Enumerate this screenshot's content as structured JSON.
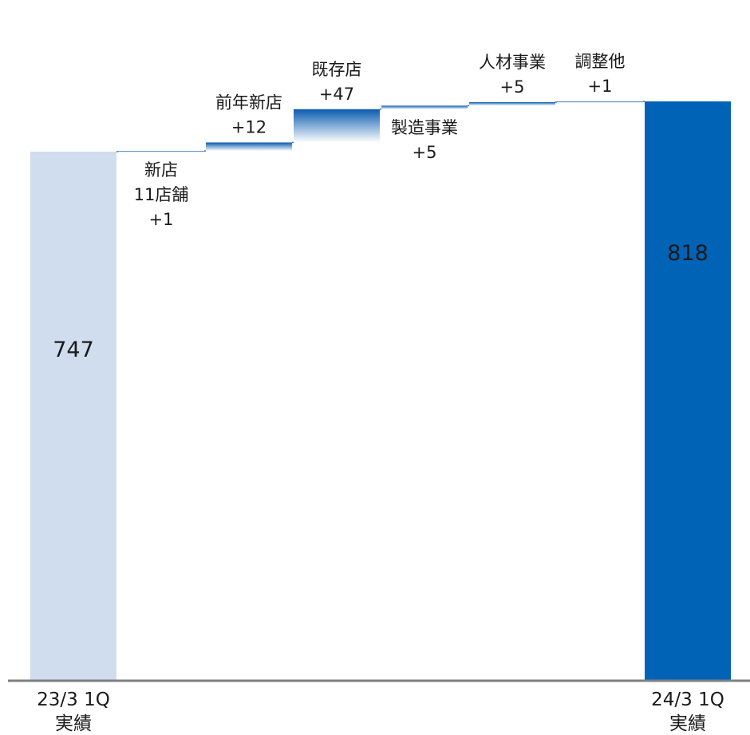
{
  "chart_data": {
    "type": "waterfall",
    "title": "",
    "xlabel": "",
    "ylabel": "",
    "ylim": [
      0,
      818
    ],
    "grid": false,
    "legend": "none",
    "bars": [
      {
        "kind": "total",
        "value": 747,
        "label_lines": [
          "747"
        ],
        "category_lines": [
          "23/3 1Q",
          "実績"
        ]
      },
      {
        "kind": "delta",
        "value": 1,
        "label_lines": [
          "新店",
          "11店舗",
          "+1"
        ],
        "label_position": "below"
      },
      {
        "kind": "delta",
        "value": 12,
        "label_lines": [
          "前年新店",
          "+12"
        ],
        "label_position": "above"
      },
      {
        "kind": "delta",
        "value": 47,
        "label_lines": [
          "既存店",
          "+47"
        ],
        "label_position": "above"
      },
      {
        "kind": "delta",
        "value": 5,
        "label_lines": [
          "製造事業",
          "+5"
        ],
        "label_position": "below"
      },
      {
        "kind": "delta",
        "value": 5,
        "label_lines": [
          "人材事業",
          "+5"
        ],
        "label_position": "above"
      },
      {
        "kind": "delta",
        "value": 1,
        "label_lines": [
          "調整他",
          "+1"
        ],
        "label_position": "above"
      },
      {
        "kind": "total",
        "value": 818,
        "label_lines": [
          "818"
        ],
        "category_lines": [
          "24/3 1Q",
          "実績"
        ]
      }
    ],
    "colors": {
      "start_bar": "#cfddee",
      "end_bar": "#0063b6",
      "delta_top": "#0a5bb0",
      "delta_bottom": "#ffffff",
      "connector": "#3d6fb3",
      "axis": "#7f7f7f",
      "end_label": "#ffffff",
      "text": "#1a1a1a"
    }
  }
}
